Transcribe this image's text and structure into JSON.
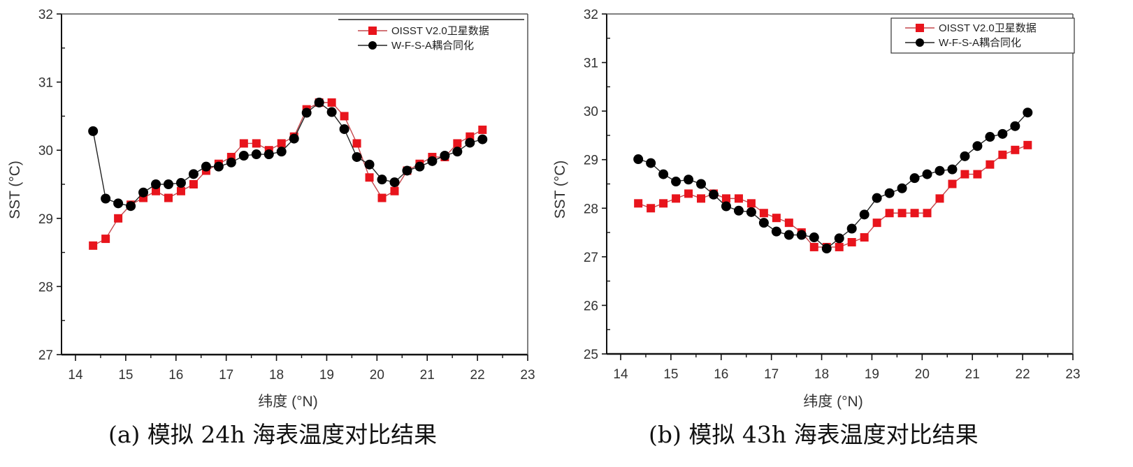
{
  "chart_data": [
    {
      "type": "line",
      "panel": "a",
      "caption": "(a)  模拟 24h 海表温度对比结果",
      "xlabel": "纬度 (°N)",
      "ylabel": "SST (°C)",
      "xlim": [
        13.4,
        23
      ],
      "ylim": [
        27,
        32
      ],
      "xticks": [
        "14",
        "15",
        "16",
        "17",
        "18",
        "19",
        "20",
        "21",
        "22",
        "23"
      ],
      "yticks": [
        "27",
        "28",
        "29",
        "30",
        "31",
        "32"
      ],
      "legend_position": "top-right",
      "colors": {
        "obs": "#e8141c",
        "model": "#000000"
      },
      "x": [
        14.35,
        14.6,
        14.85,
        15.1,
        15.35,
        15.6,
        15.85,
        16.1,
        16.35,
        16.6,
        16.85,
        17.1,
        17.35,
        17.6,
        17.85,
        18.1,
        18.35,
        18.6,
        18.85,
        19.1,
        19.35,
        19.6,
        19.85,
        20.1,
        20.35,
        20.6,
        20.85,
        21.1,
        21.35,
        21.6,
        21.85,
        22.1
      ],
      "series": [
        {
          "name": "OISST V2.0卫星数据",
          "marker": "square",
          "values": [
            28.6,
            28.7,
            29.0,
            29.2,
            29.3,
            29.4,
            29.3,
            29.4,
            29.5,
            29.7,
            29.8,
            29.9,
            30.1,
            30.1,
            30.0,
            30.1,
            30.2,
            30.6,
            30.7,
            30.7,
            30.5,
            30.1,
            29.6,
            29.3,
            29.4,
            29.7,
            29.8,
            29.9,
            29.9,
            30.1,
            30.2,
            30.3
          ]
        },
        {
          "name": "W-F-S-A耦合同化",
          "marker": "circle",
          "values": [
            30.28,
            29.29,
            29.22,
            29.18,
            29.38,
            29.5,
            29.5,
            29.52,
            29.65,
            29.76,
            29.76,
            29.82,
            29.92,
            29.94,
            29.94,
            29.98,
            30.17,
            30.55,
            30.7,
            30.56,
            30.31,
            29.9,
            29.79,
            29.57,
            29.53,
            29.7,
            29.76,
            29.84,
            29.92,
            29.98,
            30.11,
            30.16
          ]
        }
      ]
    },
    {
      "type": "line",
      "panel": "b",
      "caption": "(b)  模拟 43h 海表温度对比结果",
      "xlabel": "纬度 (°N)",
      "ylabel": "SST (°C)",
      "xlim": [
        13.4,
        23
      ],
      "ylim": [
        25,
        32
      ],
      "xticks": [
        "14",
        "15",
        "16",
        "17",
        "18",
        "19",
        "20",
        "21",
        "22",
        "23"
      ],
      "yticks": [
        "25",
        "26",
        "27",
        "28",
        "29",
        "30",
        "31",
        "32"
      ],
      "legend_position": "top-right",
      "colors": {
        "obs": "#e8141c",
        "model": "#000000"
      },
      "x": [
        14.35,
        14.6,
        14.85,
        15.1,
        15.35,
        15.6,
        15.85,
        16.1,
        16.35,
        16.6,
        16.85,
        17.1,
        17.35,
        17.6,
        17.85,
        18.1,
        18.35,
        18.6,
        18.85,
        19.1,
        19.35,
        19.6,
        19.85,
        20.1,
        20.35,
        20.6,
        20.85,
        21.1,
        21.35,
        21.6,
        21.85,
        22.1
      ],
      "series": [
        {
          "name": "OISST V2.0卫星数据",
          "marker": "square",
          "values": [
            28.1,
            28.0,
            28.1,
            28.2,
            28.3,
            28.2,
            28.3,
            28.2,
            28.2,
            28.1,
            27.9,
            27.8,
            27.7,
            27.5,
            27.2,
            27.2,
            27.2,
            27.3,
            27.4,
            27.7,
            27.9,
            27.9,
            27.9,
            27.9,
            28.2,
            28.5,
            28.7,
            28.7,
            28.9,
            29.1,
            29.2,
            29.3
          ]
        },
        {
          "name": "W-F-S-A耦合同化",
          "marker": "circle",
          "values": [
            29.01,
            28.93,
            28.7,
            28.55,
            28.59,
            28.5,
            28.28,
            28.04,
            27.95,
            27.92,
            27.7,
            27.52,
            27.45,
            27.45,
            27.4,
            27.17,
            27.38,
            27.58,
            27.87,
            28.21,
            28.31,
            28.41,
            28.62,
            28.7,
            28.77,
            28.8,
            29.07,
            29.28,
            29.47,
            29.53,
            29.69,
            29.97
          ]
        }
      ]
    }
  ]
}
